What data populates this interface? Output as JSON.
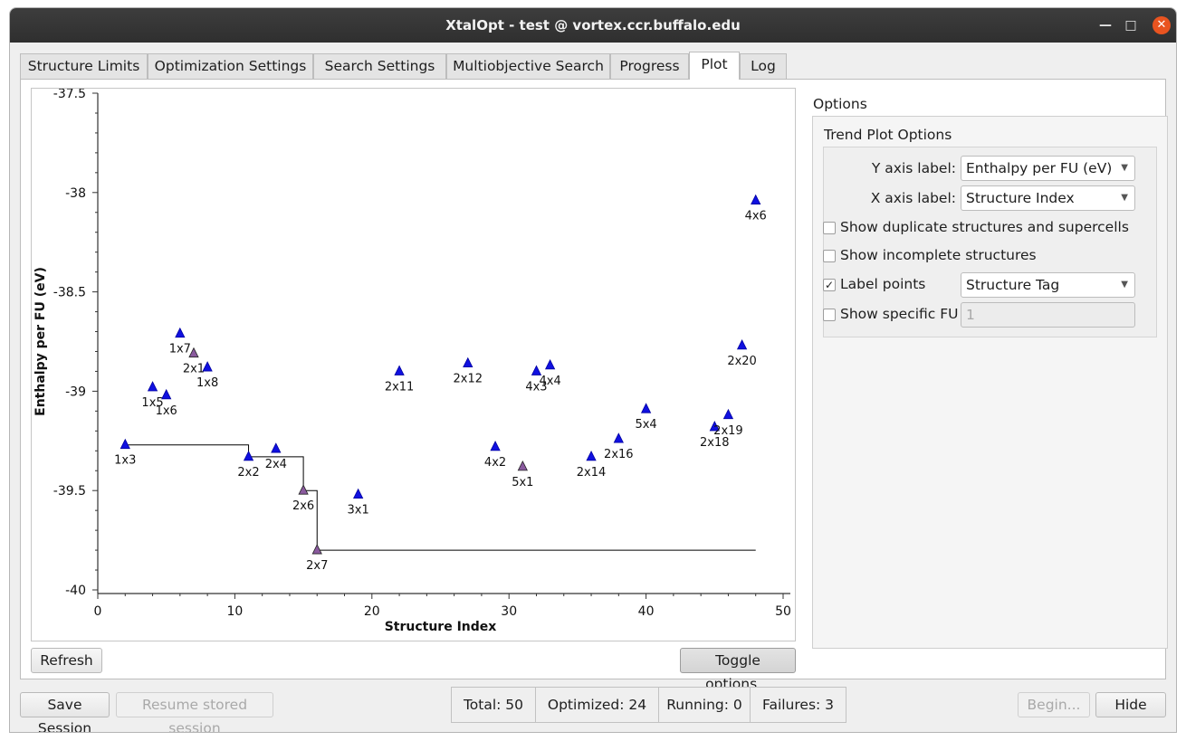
{
  "window": {
    "title": "XtalOpt - test @ vortex.ccr.buffalo.edu"
  },
  "tabs": [
    {
      "label": "Structure Limits"
    },
    {
      "label": "Optimization Settings"
    },
    {
      "label": "Search Settings"
    },
    {
      "label": "Multiobjective Search"
    },
    {
      "label": "Progress"
    },
    {
      "label": "Plot"
    },
    {
      "label": "Log"
    }
  ],
  "plot": {
    "refresh_label": "Refresh",
    "toggle_label": "Toggle options..."
  },
  "options": {
    "title": "Options",
    "group_title": "Trend Plot Options",
    "y_axis_label": "Y axis label:",
    "y_axis_value": "Enthalpy per FU (eV)",
    "x_axis_label": "X axis label:",
    "x_axis_value": "Structure Index",
    "show_duplicates": "Show duplicate structures and supercells",
    "show_incomplete": "Show incomplete structures",
    "label_points": "Label points",
    "label_points_value": "Structure Tag",
    "show_specific_fu": "Show specific FU",
    "specific_fu_value": "1",
    "checks": {
      "duplicates": false,
      "incomplete": false,
      "label_points": true,
      "specific_fu": false
    }
  },
  "bottom": {
    "save_session": "Save Session",
    "resume_session": "Resume stored session",
    "total": "Total:  50",
    "optimized": "Optimized:  24",
    "running": "Running:  0",
    "failures": "Failures:  3",
    "begin": "Begin...",
    "hide": "Hide"
  },
  "colors": {
    "point": "#1010e0",
    "highlight": "#8a5a9e",
    "accent": "#e95420"
  },
  "chart_data": {
    "type": "scatter",
    "xlabel": "Structure Index",
    "ylabel": "Enthalpy per FU (eV)",
    "xlim": [
      0,
      50
    ],
    "ylim": [
      -40,
      -37.5
    ],
    "x_ticks": [
      0,
      10,
      20,
      30,
      40,
      50
    ],
    "y_ticks": [
      -40,
      -39.5,
      -39,
      -38.5,
      -38,
      -37.5
    ],
    "points": [
      {
        "x": 2,
        "y": -39.27,
        "label": "1x3",
        "highlight": false
      },
      {
        "x": 4,
        "y": -38.98,
        "label": "1x5",
        "highlight": false
      },
      {
        "x": 5,
        "y": -39.02,
        "label": "1x6",
        "highlight": false
      },
      {
        "x": 6,
        "y": -38.71,
        "label": "1x7",
        "highlight": false
      },
      {
        "x": 7,
        "y": -38.81,
        "label": "2x1",
        "highlight": true
      },
      {
        "x": 8,
        "y": -38.88,
        "label": "1x8",
        "highlight": false
      },
      {
        "x": 11,
        "y": -39.33,
        "label": "2x2",
        "highlight": false
      },
      {
        "x": 13,
        "y": -39.29,
        "label": "2x4",
        "highlight": false
      },
      {
        "x": 15,
        "y": -39.5,
        "label": "2x6",
        "highlight": true
      },
      {
        "x": 16,
        "y": -39.8,
        "label": "2x7",
        "highlight": true
      },
      {
        "x": 19,
        "y": -39.52,
        "label": "3x1",
        "highlight": false
      },
      {
        "x": 22,
        "y": -38.9,
        "label": "2x11",
        "highlight": false
      },
      {
        "x": 27,
        "y": -38.86,
        "label": "2x12",
        "highlight": false
      },
      {
        "x": 29,
        "y": -39.28,
        "label": "4x2",
        "highlight": false
      },
      {
        "x": 31,
        "y": -39.38,
        "label": "5x1",
        "highlight": true
      },
      {
        "x": 32,
        "y": -38.9,
        "label": "4x3",
        "highlight": false
      },
      {
        "x": 33,
        "y": -38.87,
        "label": "4x4",
        "highlight": false
      },
      {
        "x": 36,
        "y": -39.33,
        "label": "2x14",
        "highlight": false
      },
      {
        "x": 38,
        "y": -39.24,
        "label": "2x16",
        "highlight": false
      },
      {
        "x": 40,
        "y": -39.09,
        "label": "5x4",
        "highlight": false
      },
      {
        "x": 45,
        "y": -39.18,
        "label": "2x18",
        "highlight": false
      },
      {
        "x": 46,
        "y": -39.12,
        "label": "2x19",
        "highlight": false
      },
      {
        "x": 47,
        "y": -38.77,
        "label": "2x20",
        "highlight": false
      },
      {
        "x": 48,
        "y": -38.04,
        "label": "4x6",
        "highlight": false
      }
    ],
    "trend_line": [
      [
        2,
        -39.27
      ],
      [
        11,
        -39.27
      ],
      [
        11,
        -39.33
      ],
      [
        15,
        -39.33
      ],
      [
        15,
        -39.5
      ],
      [
        16,
        -39.5
      ],
      [
        16,
        -39.8
      ],
      [
        48,
        -39.8
      ]
    ]
  }
}
